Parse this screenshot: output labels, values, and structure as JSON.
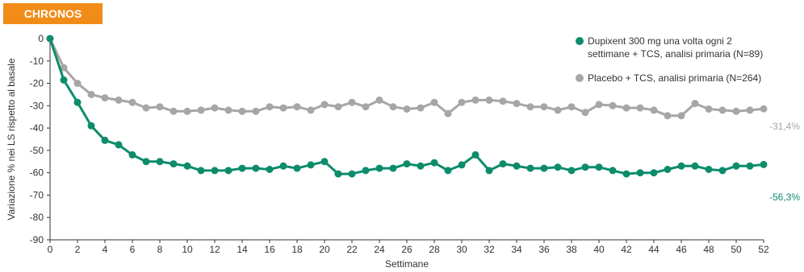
{
  "badge": {
    "label": "CHRONOS",
    "color": "#f28c18"
  },
  "chart_data": {
    "type": "line",
    "title": "",
    "xlabel": "Settimane",
    "ylabel": "Variazione % nei LS rispetto al basale",
    "xlim": [
      0,
      52
    ],
    "ylim": [
      -90,
      0
    ],
    "xticks": [
      0,
      2,
      4,
      6,
      8,
      10,
      12,
      14,
      16,
      18,
      20,
      22,
      24,
      26,
      28,
      30,
      32,
      34,
      36,
      38,
      40,
      42,
      44,
      46,
      48,
      50,
      52
    ],
    "yticks": [
      0,
      -10,
      -20,
      -30,
      -40,
      -50,
      -60,
      -70,
      -80,
      -90
    ],
    "grid": false,
    "legend_position": "top-right",
    "x": [
      0,
      1,
      2,
      3,
      4,
      5,
      6,
      7,
      8,
      9,
      10,
      11,
      12,
      13,
      14,
      15,
      16,
      17,
      18,
      19,
      20,
      21,
      22,
      23,
      24,
      25,
      26,
      27,
      28,
      29,
      30,
      31,
      32,
      33,
      34,
      35,
      36,
      37,
      38,
      39,
      40,
      41,
      42,
      43,
      44,
      45,
      46,
      47,
      48,
      49,
      50,
      51,
      52
    ],
    "series": [
      {
        "name": "Dupixent 300 mg una volta ogni 2 settimane + TCS, analisi primaria (N=89)",
        "name_lines": [
          "Dupixent 300 mg una volta ogni 2",
          "settimane + TCS, analisi primaria (N=89)"
        ],
        "color": "#0d8c6c",
        "end_label": "-56,3%",
        "values": [
          0,
          -18.5,
          -28.5,
          -39,
          -45.5,
          -47.5,
          -52,
          -55,
          -55,
          -56,
          -57,
          -59,
          -59,
          -59,
          -58,
          -58,
          -58.5,
          -57,
          -58,
          -56.5,
          -55,
          -60.5,
          -60.5,
          -59,
          -58,
          -58,
          -56,
          -57,
          -55.5,
          -59,
          -56.5,
          -52,
          -59,
          -56,
          -57,
          -58,
          -58,
          -57.5,
          -59,
          -57.5,
          -57.5,
          -59,
          -60.5,
          -60,
          -60,
          -58.5,
          -57,
          -57,
          -58.5,
          -59,
          -57,
          -57,
          -56.3
        ]
      },
      {
        "name": "Placebo + TCS, analisi primaria (N=264)",
        "name_lines": [
          "Placebo + TCS, analisi primaria (N=264)"
        ],
        "color": "#a6a6a6",
        "end_label": "-31,4%",
        "values": [
          0,
          -13,
          -20,
          -25,
          -26.5,
          -27.5,
          -28.5,
          -31,
          -30.5,
          -32.5,
          -32.5,
          -32,
          -31,
          -32,
          -32.5,
          -32.5,
          -30.5,
          -31,
          -30.5,
          -32,
          -29.5,
          -30.5,
          -28.5,
          -30.5,
          -27.5,
          -30.5,
          -31.5,
          -31,
          -28.5,
          -33.5,
          -28.5,
          -27.5,
          -27.5,
          -28,
          -29,
          -30.5,
          -30.5,
          -32,
          -30.5,
          -33,
          -29.5,
          -30,
          -31,
          -31,
          -32,
          -34.5,
          -34.5,
          -29,
          -31.5,
          -32,
          -32.5,
          -32,
          -31.4
        ]
      }
    ]
  }
}
